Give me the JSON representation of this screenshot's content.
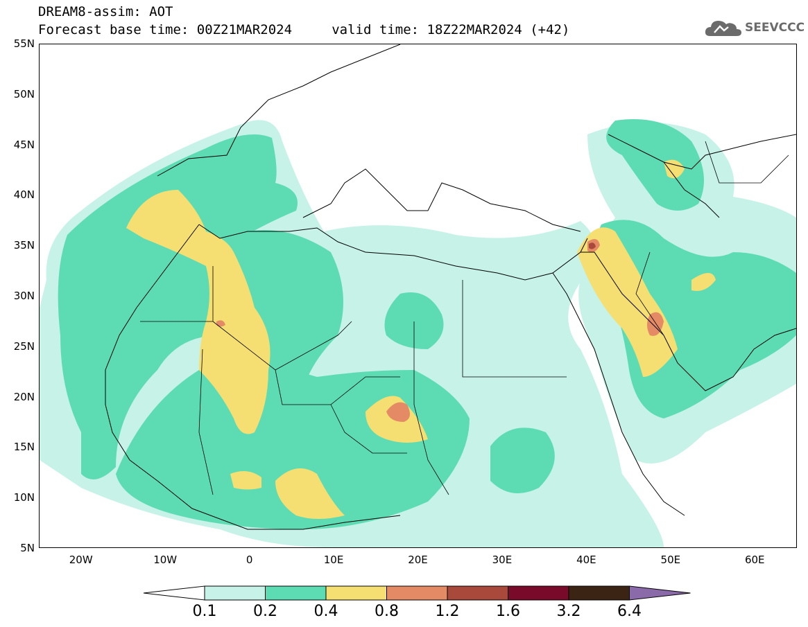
{
  "title": {
    "line1": "DREAM8-assim: AOT",
    "line2": "Forecast base time: 00Z21MAR2024     valid time: 18Z22MAR2024 (+42)"
  },
  "logo": {
    "text": "SEEVCCC",
    "icon": "cloud-logo-icon"
  },
  "map": {
    "variable": "AOT",
    "lat_range": [
      5,
      55
    ],
    "lon_range": [
      -25,
      65
    ],
    "lat_ticks": [
      {
        "value": 55,
        "label": "55N"
      },
      {
        "value": 50,
        "label": "50N"
      },
      {
        "value": 45,
        "label": "45N"
      },
      {
        "value": 40,
        "label": "40N"
      },
      {
        "value": 35,
        "label": "35N"
      },
      {
        "value": 30,
        "label": "30N"
      },
      {
        "value": 25,
        "label": "25N"
      },
      {
        "value": 20,
        "label": "20N"
      },
      {
        "value": 15,
        "label": "15N"
      },
      {
        "value": 10,
        "label": "10N"
      },
      {
        "value": 5,
        "label": "5N"
      }
    ],
    "lon_ticks": [
      {
        "value": -20,
        "label": "20W"
      },
      {
        "value": -10,
        "label": "10W"
      },
      {
        "value": 0,
        "label": "0"
      },
      {
        "value": 10,
        "label": "10E"
      },
      {
        "value": 20,
        "label": "20E"
      },
      {
        "value": 30,
        "label": "30E"
      },
      {
        "value": 40,
        "label": "40E"
      },
      {
        "value": 50,
        "label": "50E"
      },
      {
        "value": 60,
        "label": "60E"
      }
    ]
  },
  "colorbar": {
    "levels": [
      "0.1",
      "0.2",
      "0.4",
      "0.8",
      "1.2",
      "1.6",
      "3.2",
      "6.4"
    ],
    "colors": [
      "#ffffff",
      "#c6f2e8",
      "#5ddcb4",
      "#f5df72",
      "#e48b66",
      "#a8493c",
      "#7a0a2a",
      "#3b2414",
      "#8a6aa8"
    ]
  }
}
